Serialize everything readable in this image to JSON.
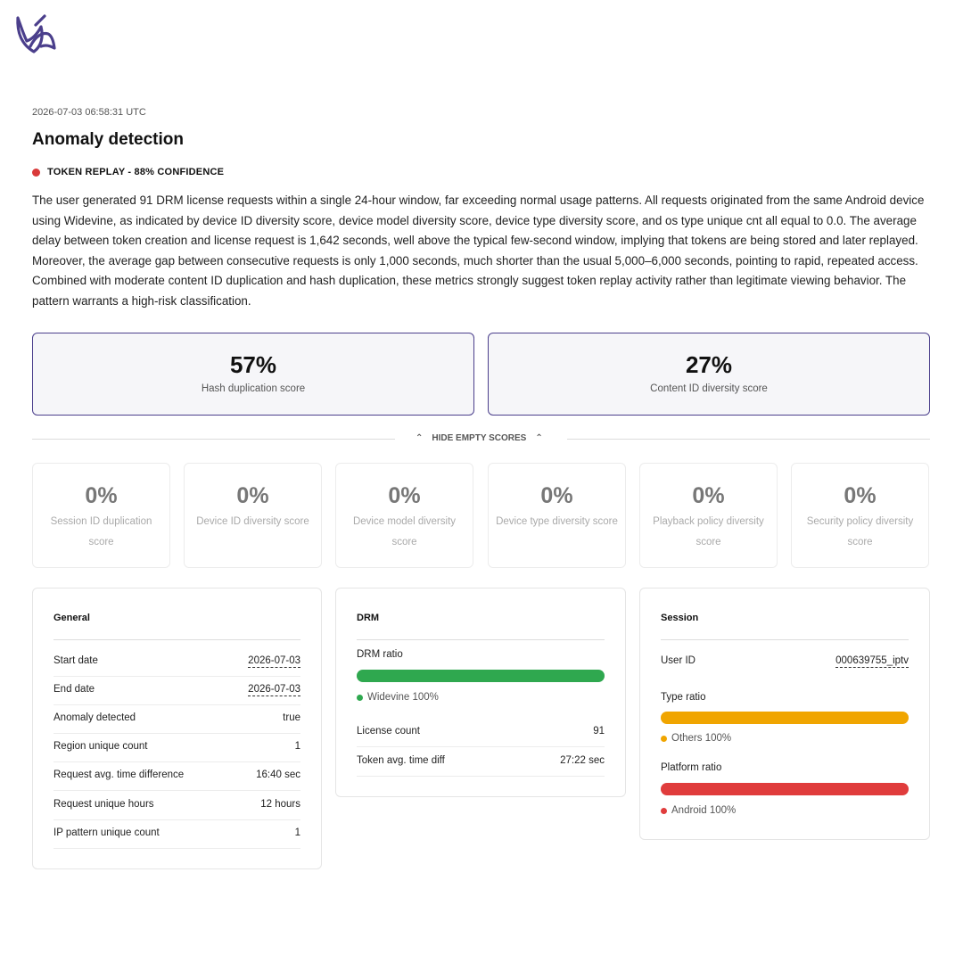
{
  "header": {
    "timestamp": "2026-07-03 06:58:31 UTC",
    "title": "Anomaly detection",
    "badge": "TOKEN REPLAY - 88% CONFIDENCE",
    "badge_color": "#d93a3a",
    "description": "The user generated 91 DRM license requests within a single 24-hour window, far exceeding normal usage patterns. All requests originated from the same Android device using Widevine, as indicated by device ID diversity score, device model diversity score, device type diversity score, and os type unique cnt all equal to 0.0. The average delay between token creation and license request is 1,642 seconds, well above the typical few-second window, implying that tokens are being stored and later replayed. Moreover, the average gap between consecutive requests is only 1,000 seconds, much shorter than the usual 5,000–6,000 seconds, pointing to rapid, repeated access. Combined with moderate content ID duplication and hash duplication, these metrics strongly suggest token replay activity rather than legitimate viewing behavior. The pattern warrants a high-risk classification."
  },
  "scores": [
    {
      "value": "57%",
      "label": "Hash duplication score"
    },
    {
      "value": "27%",
      "label": "Content ID diversity score"
    }
  ],
  "toggle": {
    "label": "HIDE EMPTY SCORES"
  },
  "empty_scores": [
    {
      "value": "0%",
      "label": "Session ID duplication score"
    },
    {
      "value": "0%",
      "label": "Device ID diversity score"
    },
    {
      "value": "0%",
      "label": "Device model diversity score"
    },
    {
      "value": "0%",
      "label": "Device type diversity score"
    },
    {
      "value": "0%",
      "label": "Playback policy diversity score"
    },
    {
      "value": "0%",
      "label": "Security policy diversity score"
    }
  ],
  "general": {
    "title": "General",
    "rows": [
      {
        "key": "Start date",
        "value": "2026-07-03"
      },
      {
        "key": "End date",
        "value": "2026-07-03"
      },
      {
        "key": "Anomaly detected",
        "value": "true"
      },
      {
        "key": "Region unique count",
        "value": "1"
      },
      {
        "key": "Request avg. time difference",
        "value": "16:40 sec"
      },
      {
        "key": "Request unique hours",
        "value": "12 hours"
      },
      {
        "key": "IP pattern unique count",
        "value": "1"
      }
    ]
  },
  "drm": {
    "title": "DRM",
    "ratio_label": "DRM ratio",
    "ratio_color": "#2fa84f",
    "ratio_legend": "Widevine 100%",
    "ratio_fraction": 1.0,
    "rows": [
      {
        "key": "License count",
        "value": "91"
      },
      {
        "key": "Token avg. time diff",
        "value": "27:22 sec"
      }
    ]
  },
  "session": {
    "title": "Session",
    "user_id_label": "User ID",
    "user_id": "000639755_iptv",
    "type_label": "Type ratio",
    "type_color": "#f0a500",
    "type_legend": "Others 100%",
    "type_fraction": 1.0,
    "platform_label": "Platform ratio",
    "platform_color": "#e03c3c",
    "platform_legend": "Android 100%",
    "platform_fraction": 1.0
  },
  "brand": {
    "logo_icon": "bird-logo-icon",
    "color": "#4b3f8c"
  }
}
